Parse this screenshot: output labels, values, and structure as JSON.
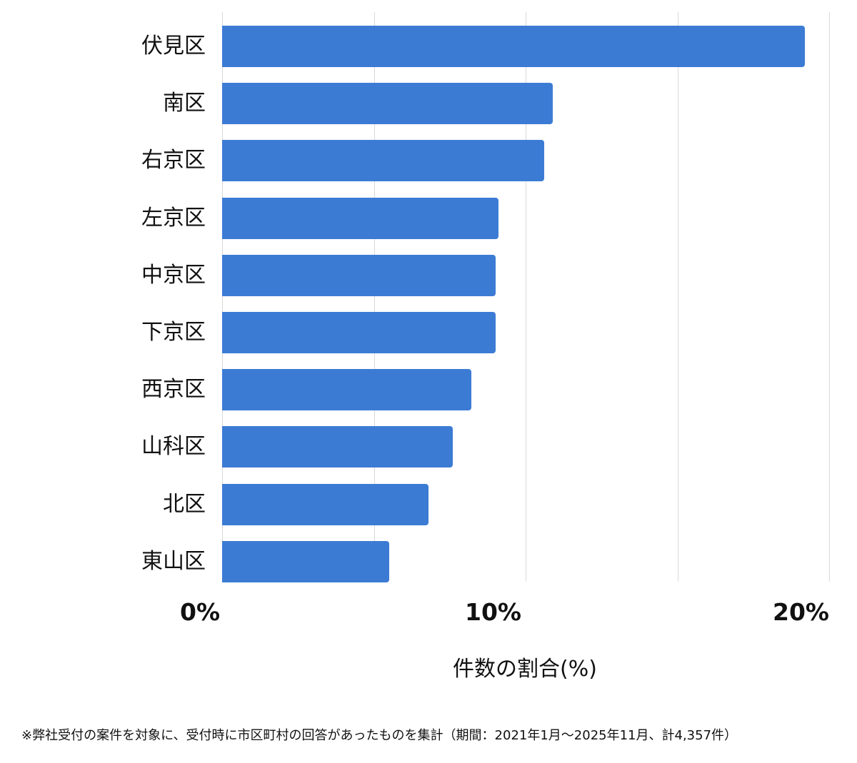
{
  "chart_data": {
    "type": "bar",
    "orientation": "horizontal",
    "categories": [
      "伏見区",
      "南区",
      "右京区",
      "左京区",
      "中京区",
      "下京区",
      "西京区",
      "山科区",
      "北区",
      "東山区"
    ],
    "values": [
      19.2,
      10.9,
      10.6,
      9.1,
      9.0,
      9.0,
      8.2,
      7.6,
      6.8,
      5.5
    ],
    "title": "",
    "xlabel": "件数の割合(%)",
    "ylabel": "",
    "xlim": [
      0,
      20
    ],
    "xticks": [
      "0%",
      "10%",
      "20%"
    ],
    "grid": true,
    "gridline_step": 5,
    "legend": "none",
    "bar_color": "#3c7bd4"
  },
  "axis": {
    "ticks": [
      "0%",
      "10%",
      "20%"
    ],
    "title": "件数の割合(%)"
  },
  "footnote": "※弊社受付の案件を対象に、受付時に市区町村の回答があったものを集計（期間：2021年1月〜2025年11月、計4,357件）",
  "colors": {
    "bar": "#3c7bd4",
    "grid": "#d9d9d9",
    "text": "#111111"
  }
}
